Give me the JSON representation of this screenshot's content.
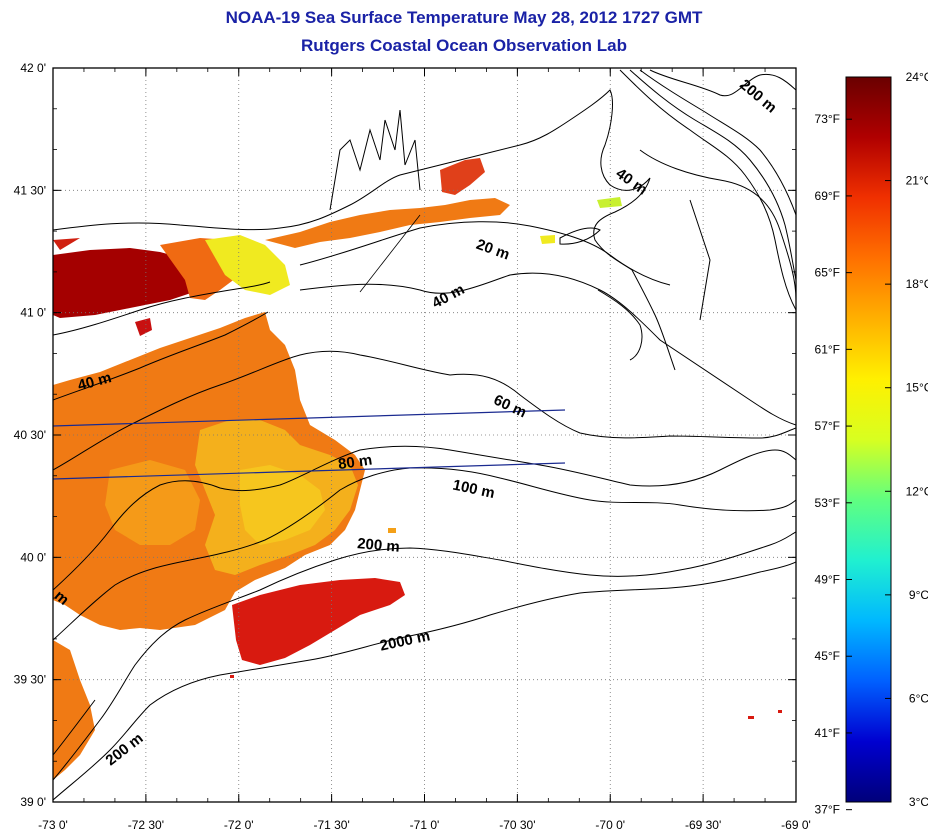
{
  "title": "NOAA-19 Sea Surface Temperature May 28, 2012 1727 GMT",
  "subtitle": "Rutgers Coastal Ocean Observation Lab",
  "map": {
    "lon_range": [
      -73,
      -69
    ],
    "lat_range": [
      39,
      42
    ],
    "lon_ticks": [
      {
        "v": -73.0,
        "label": "-73 0'"
      },
      {
        "v": -72.5,
        "label": "-72 30'"
      },
      {
        "v": -72.0,
        "label": "-72 0'"
      },
      {
        "v": -71.5,
        "label": "-71 30'"
      },
      {
        "v": -71.0,
        "label": "-71 0'"
      },
      {
        "v": -70.5,
        "label": "-70 30'"
      },
      {
        "v": -70.0,
        "label": "-70 0'"
      },
      {
        "v": -69.5,
        "label": "-69 30'"
      },
      {
        "v": -69.0,
        "label": "-69 0'"
      }
    ],
    "lat_ticks": [
      {
        "v": 42.0,
        "label": "42 0'"
      },
      {
        "v": 41.5,
        "label": "41 30'"
      },
      {
        "v": 41.0,
        "label": "41 0'"
      },
      {
        "v": 40.5,
        "label": "40 30'"
      },
      {
        "v": 40.0,
        "label": "40 0'"
      },
      {
        "v": 39.5,
        "label": "39 30'"
      },
      {
        "v": 39.0,
        "label": "39 0'"
      }
    ],
    "grid": true,
    "isobath_labels": [
      {
        "text": "200 m",
        "lon": -69.22,
        "lat": 41.87,
        "rot": 40
      },
      {
        "text": "40 m",
        "lon": -69.9,
        "lat": 41.52,
        "rot": 35
      },
      {
        "text": "20 m",
        "lon": -70.64,
        "lat": 41.24,
        "rot": 20
      },
      {
        "text": "40 m",
        "lon": -70.86,
        "lat": 41.05,
        "rot": -28
      },
      {
        "text": "40 m",
        "lon": -72.77,
        "lat": 40.7,
        "rot": -15
      },
      {
        "text": "60 m",
        "lon": -70.55,
        "lat": 40.6,
        "rot": 25
      },
      {
        "text": "80 m",
        "lon": -71.37,
        "lat": 40.37,
        "rot": -8
      },
      {
        "text": "100 m",
        "lon": -70.74,
        "lat": 40.26,
        "rot": 12
      },
      {
        "text": "200 m",
        "lon": -71.25,
        "lat": 40.03,
        "rot": 5
      },
      {
        "text": "2000 m",
        "lon": -71.1,
        "lat": 39.64,
        "rot": -12
      },
      {
        "text": "200 m",
        "lon": -72.6,
        "lat": 39.2,
        "rot": -38
      },
      {
        "text": "m",
        "lon": -72.97,
        "lat": 39.82,
        "rot": 40
      }
    ]
  },
  "colorbar": {
    "celsius_range": [
      3,
      24
    ],
    "celsius_ticks": [
      {
        "v": 24,
        "label": "24°C"
      },
      {
        "v": 21,
        "label": "21°C"
      },
      {
        "v": 18,
        "label": "18°C"
      },
      {
        "v": 15,
        "label": "15°C"
      },
      {
        "v": 12,
        "label": "12°C"
      },
      {
        "v": 9,
        "label": "9°C"
      },
      {
        "v": 6,
        "label": "6°C"
      },
      {
        "v": 3,
        "label": "3°C"
      }
    ],
    "fahrenheit_ticks": [
      {
        "v": 73,
        "label": "73°F"
      },
      {
        "v": 69,
        "label": "69°F"
      },
      {
        "v": 65,
        "label": "65°F"
      },
      {
        "v": 61,
        "label": "61°F"
      },
      {
        "v": 57,
        "label": "57°F"
      },
      {
        "v": 53,
        "label": "53°F"
      },
      {
        "v": 49,
        "label": "49°F"
      },
      {
        "v": 45,
        "label": "45°F"
      },
      {
        "v": 41,
        "label": "41°F"
      },
      {
        "v": 37,
        "label": "37°F"
      }
    ],
    "colors": [
      "#00007a",
      "#0000d0",
      "#0060ff",
      "#00b8ff",
      "#20f0d0",
      "#60ff80",
      "#d8ff20",
      "#fff000",
      "#ffb000",
      "#ff7000",
      "#f03000",
      "#b00000",
      "#6a0000"
    ]
  },
  "sst_colors": {
    "warm_dark": "#a40000",
    "warm_red": "#d81a10",
    "orange_red": "#ee5a10",
    "orange": "#f07a14",
    "light_orange": "#f4a018",
    "yellow_orange": "#f7c21c",
    "yellow": "#f0ea20",
    "lime": "#c8f030"
  }
}
